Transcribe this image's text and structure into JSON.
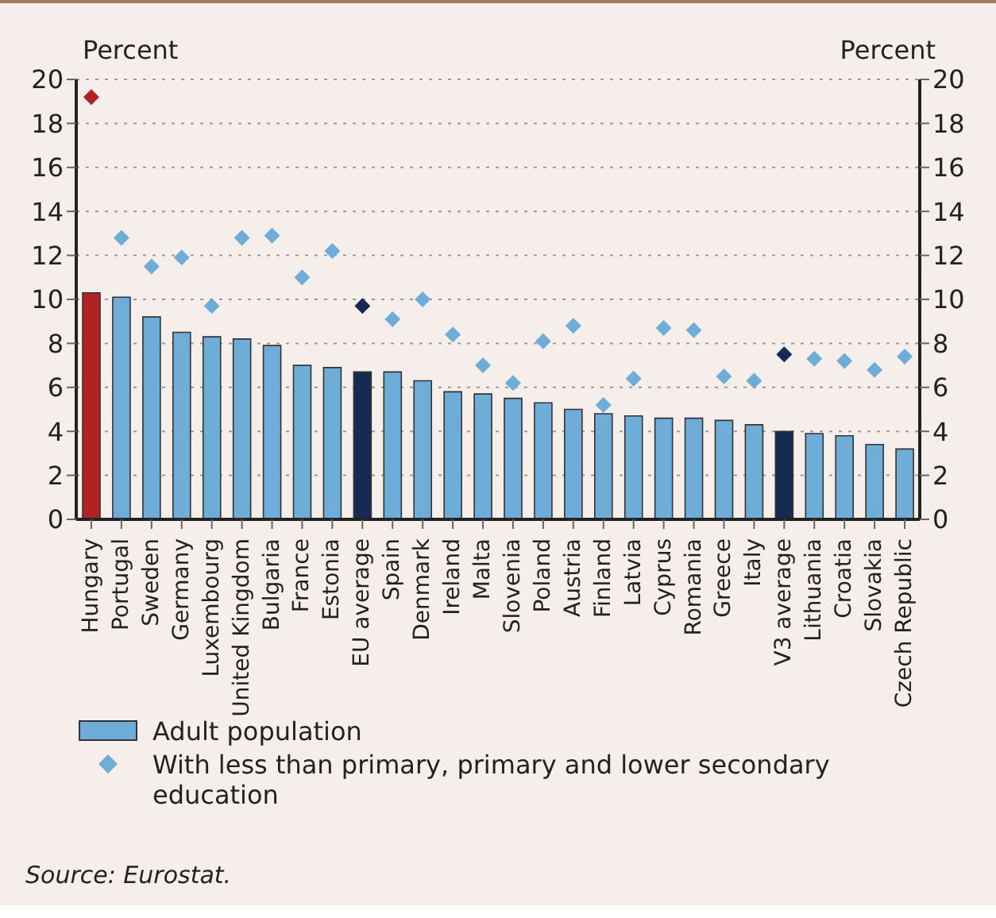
{
  "chart_data": {
    "type": "bar",
    "categories": [
      "Hungary",
      "Portugal",
      "Sweden",
      "Germany",
      "Luxembourg",
      "United Kingdom",
      "Bulgaria",
      "France",
      "Estonia",
      "EU average",
      "Spain",
      "Denmark",
      "Ireland",
      "Malta",
      "Slovenia",
      "Poland",
      "Austria",
      "Finland",
      "Latvia",
      "Cyprus",
      "Romania",
      "Greece",
      "Italy",
      "V3 average",
      "Lithuania",
      "Croatia",
      "Slovakia",
      "Czech Republic"
    ],
    "series": [
      {
        "name": "Adult population",
        "color": "#6fadd9",
        "colors": [
          "#b22222",
          "#6fadd9",
          "#6fadd9",
          "#6fadd9",
          "#6fadd9",
          "#6fadd9",
          "#6fadd9",
          "#6fadd9",
          "#6fadd9",
          "#172a54",
          "#6fadd9",
          "#6fadd9",
          "#6fadd9",
          "#6fadd9",
          "#6fadd9",
          "#6fadd9",
          "#6fadd9",
          "#6fadd9",
          "#6fadd9",
          "#6fadd9",
          "#6fadd9",
          "#6fadd9",
          "#6fadd9",
          "#172a54",
          "#6fadd9",
          "#6fadd9",
          "#6fadd9",
          "#6fadd9"
        ],
        "values": [
          10.3,
          10.1,
          9.2,
          8.5,
          8.3,
          8.2,
          7.9,
          7.0,
          6.9,
          6.7,
          6.7,
          6.3,
          5.8,
          5.7,
          5.5,
          5.3,
          5.0,
          4.8,
          4.7,
          4.6,
          4.6,
          4.5,
          4.3,
          4.0,
          3.9,
          3.8,
          3.4,
          3.2
        ]
      },
      {
        "name": "With less than primary, primary and lower secondary education",
        "type": "scatter",
        "marker": "diamond",
        "color": "#6fadd9",
        "colors": [
          "#b22222",
          "#6fadd9",
          "#6fadd9",
          "#6fadd9",
          "#6fadd9",
          "#6fadd9",
          "#6fadd9",
          "#6fadd9",
          "#6fadd9",
          "#172a54",
          "#6fadd9",
          "#6fadd9",
          "#6fadd9",
          "#6fadd9",
          "#6fadd9",
          "#6fadd9",
          "#6fadd9",
          "#6fadd9",
          "#6fadd9",
          "#6fadd9",
          "#6fadd9",
          "#6fadd9",
          "#6fadd9",
          "#172a54",
          "#6fadd9",
          "#6fadd9",
          "#6fadd9",
          "#6fadd9"
        ],
        "values": [
          19.2,
          12.8,
          11.5,
          11.9,
          9.7,
          12.8,
          12.9,
          11.0,
          12.2,
          9.7,
          9.1,
          10.0,
          8.4,
          7.0,
          6.2,
          8.1,
          8.8,
          5.2,
          6.4,
          8.7,
          8.6,
          6.5,
          6.3,
          7.5,
          7.3,
          7.2,
          6.8,
          7.4
        ]
      }
    ],
    "ylabel": "Percent",
    "y2label": "Percent",
    "ylim": [
      0,
      20
    ],
    "yticks": [
      0,
      2,
      4,
      6,
      8,
      10,
      12,
      14,
      16,
      18,
      20
    ],
    "y2lim": [
      0,
      20
    ],
    "y2ticks": [
      0,
      2,
      4,
      6,
      8,
      10,
      12,
      14,
      16,
      18,
      20
    ],
    "grid": "y",
    "legend": "bottom",
    "annotations": [
      "Source: Eurostat."
    ]
  }
}
